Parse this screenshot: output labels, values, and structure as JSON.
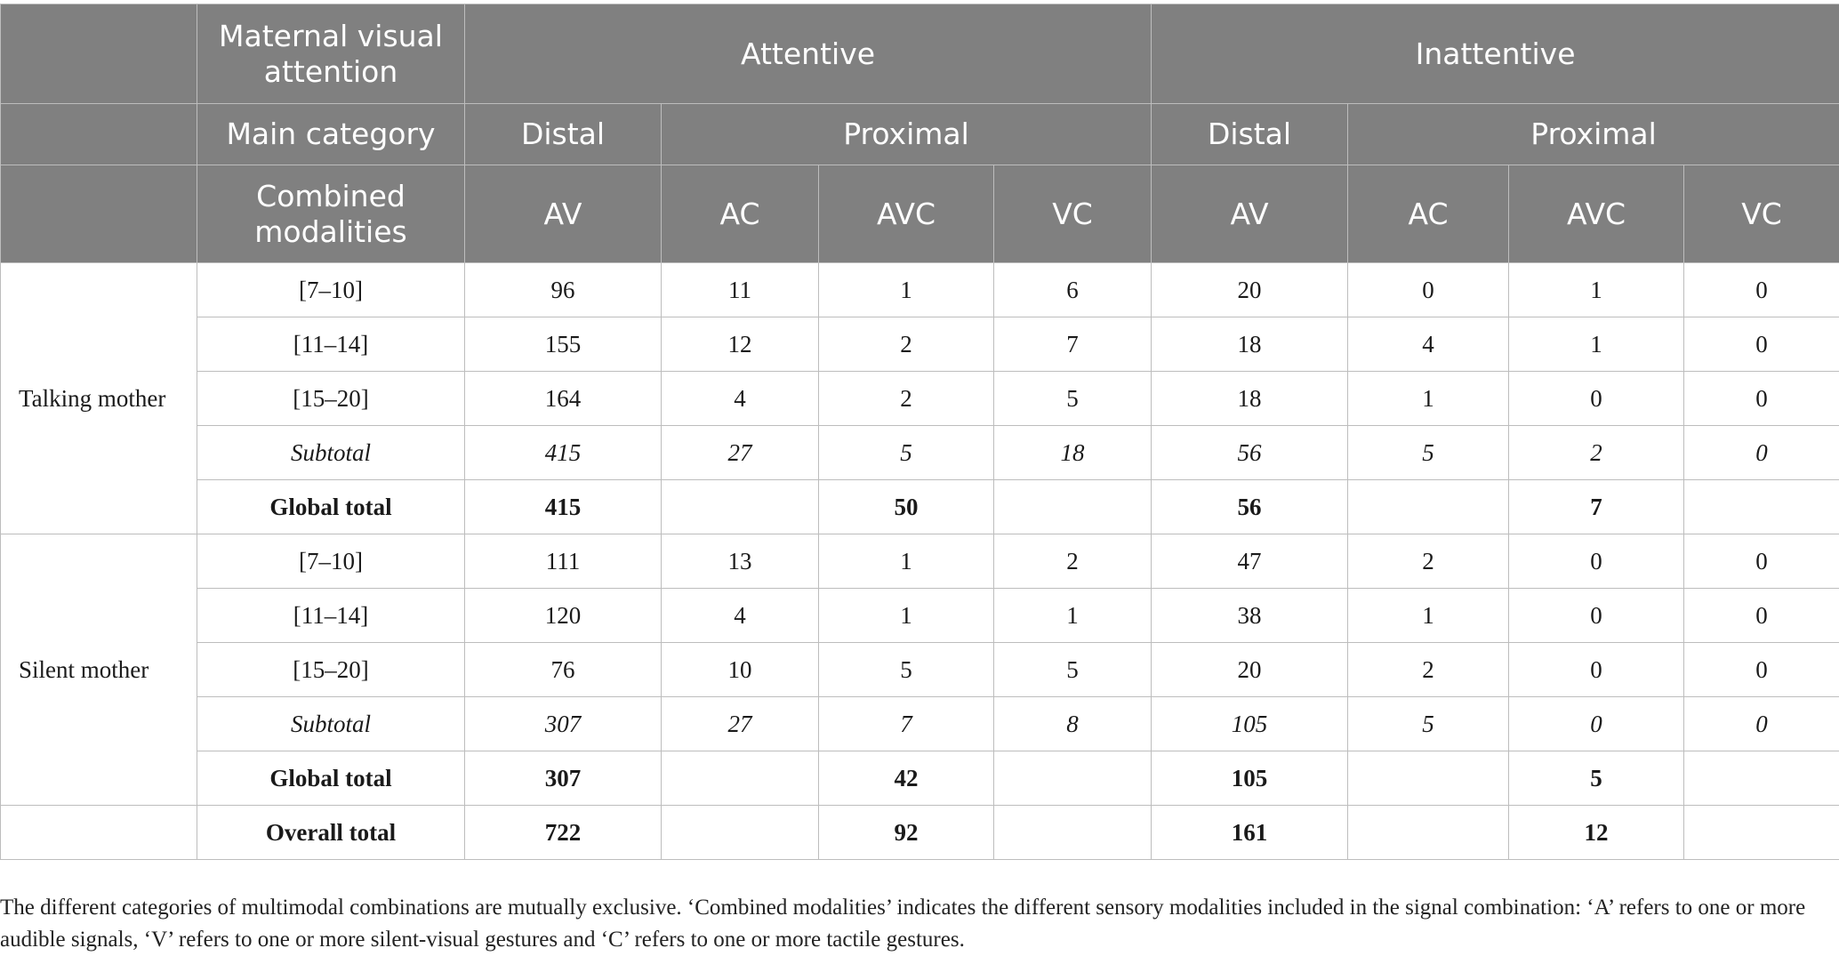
{
  "header": {
    "row1": {
      "maternal_visual_attention": "Maternal visual attention",
      "attentive": "Attentive",
      "inattentive": "Inattentive"
    },
    "row2": {
      "main_category": "Main category",
      "distal_attentive": "Distal",
      "proximal_attentive": "Proximal",
      "distal_inattentive": "Distal",
      "proximal_inattentive": "Proximal"
    },
    "row3": {
      "combined_modalities": "Combined modalities",
      "cols": [
        "AV",
        "AC",
        "AVC",
        "VC",
        "AV",
        "AC",
        "AVC",
        "VC"
      ]
    }
  },
  "groups": [
    {
      "label": "Talking mother",
      "rows": [
        {
          "label": "[7–10]",
          "values": [
            "96",
            "11",
            "1",
            "6",
            "20",
            "0",
            "1",
            "0"
          ]
        },
        {
          "label": "[11–14]",
          "values": [
            "155",
            "12",
            "2",
            "7",
            "18",
            "4",
            "1",
            "0"
          ]
        },
        {
          "label": "[15–20]",
          "values": [
            "164",
            "4",
            "2",
            "5",
            "18",
            "1",
            "0",
            "0"
          ]
        },
        {
          "label": "Subtotal",
          "values": [
            "415",
            "27",
            "5",
            "18",
            "56",
            "5",
            "2",
            "0"
          ]
        }
      ],
      "global_total": {
        "label": "Global total",
        "values": [
          "415",
          "",
          "50",
          "",
          "56",
          "",
          "7",
          ""
        ]
      }
    },
    {
      "label": "Silent mother",
      "rows": [
        {
          "label": "[7–10]",
          "values": [
            "111",
            "13",
            "1",
            "2",
            "47",
            "2",
            "0",
            "0"
          ]
        },
        {
          "label": "[11–14]",
          "values": [
            "120",
            "4",
            "1",
            "1",
            "38",
            "1",
            "0",
            "0"
          ]
        },
        {
          "label": "[15–20]",
          "values": [
            "76",
            "10",
            "5",
            "5",
            "20",
            "2",
            "0",
            "0"
          ]
        },
        {
          "label": "Subtotal",
          "values": [
            "307",
            "27",
            "7",
            "8",
            "105",
            "5",
            "0",
            "0"
          ]
        }
      ],
      "global_total": {
        "label": "Global total",
        "values": [
          "307",
          "",
          "42",
          "",
          "105",
          "",
          "5",
          ""
        ]
      }
    }
  ],
  "overall_total": {
    "label": "Overall total",
    "values": [
      "722",
      "",
      "92",
      "",
      "161",
      "",
      "12",
      ""
    ]
  },
  "note": "The different categories of multimodal combinations are mutually exclusive. ‘Combined modalities’ indicates the different sensory modalities included in the signal combination: ‘A’ refers to one or more audible signals, ‘V’ refers to one or more silent-visual gestures and ‘C’ refers to one or more tactile gestures."
}
